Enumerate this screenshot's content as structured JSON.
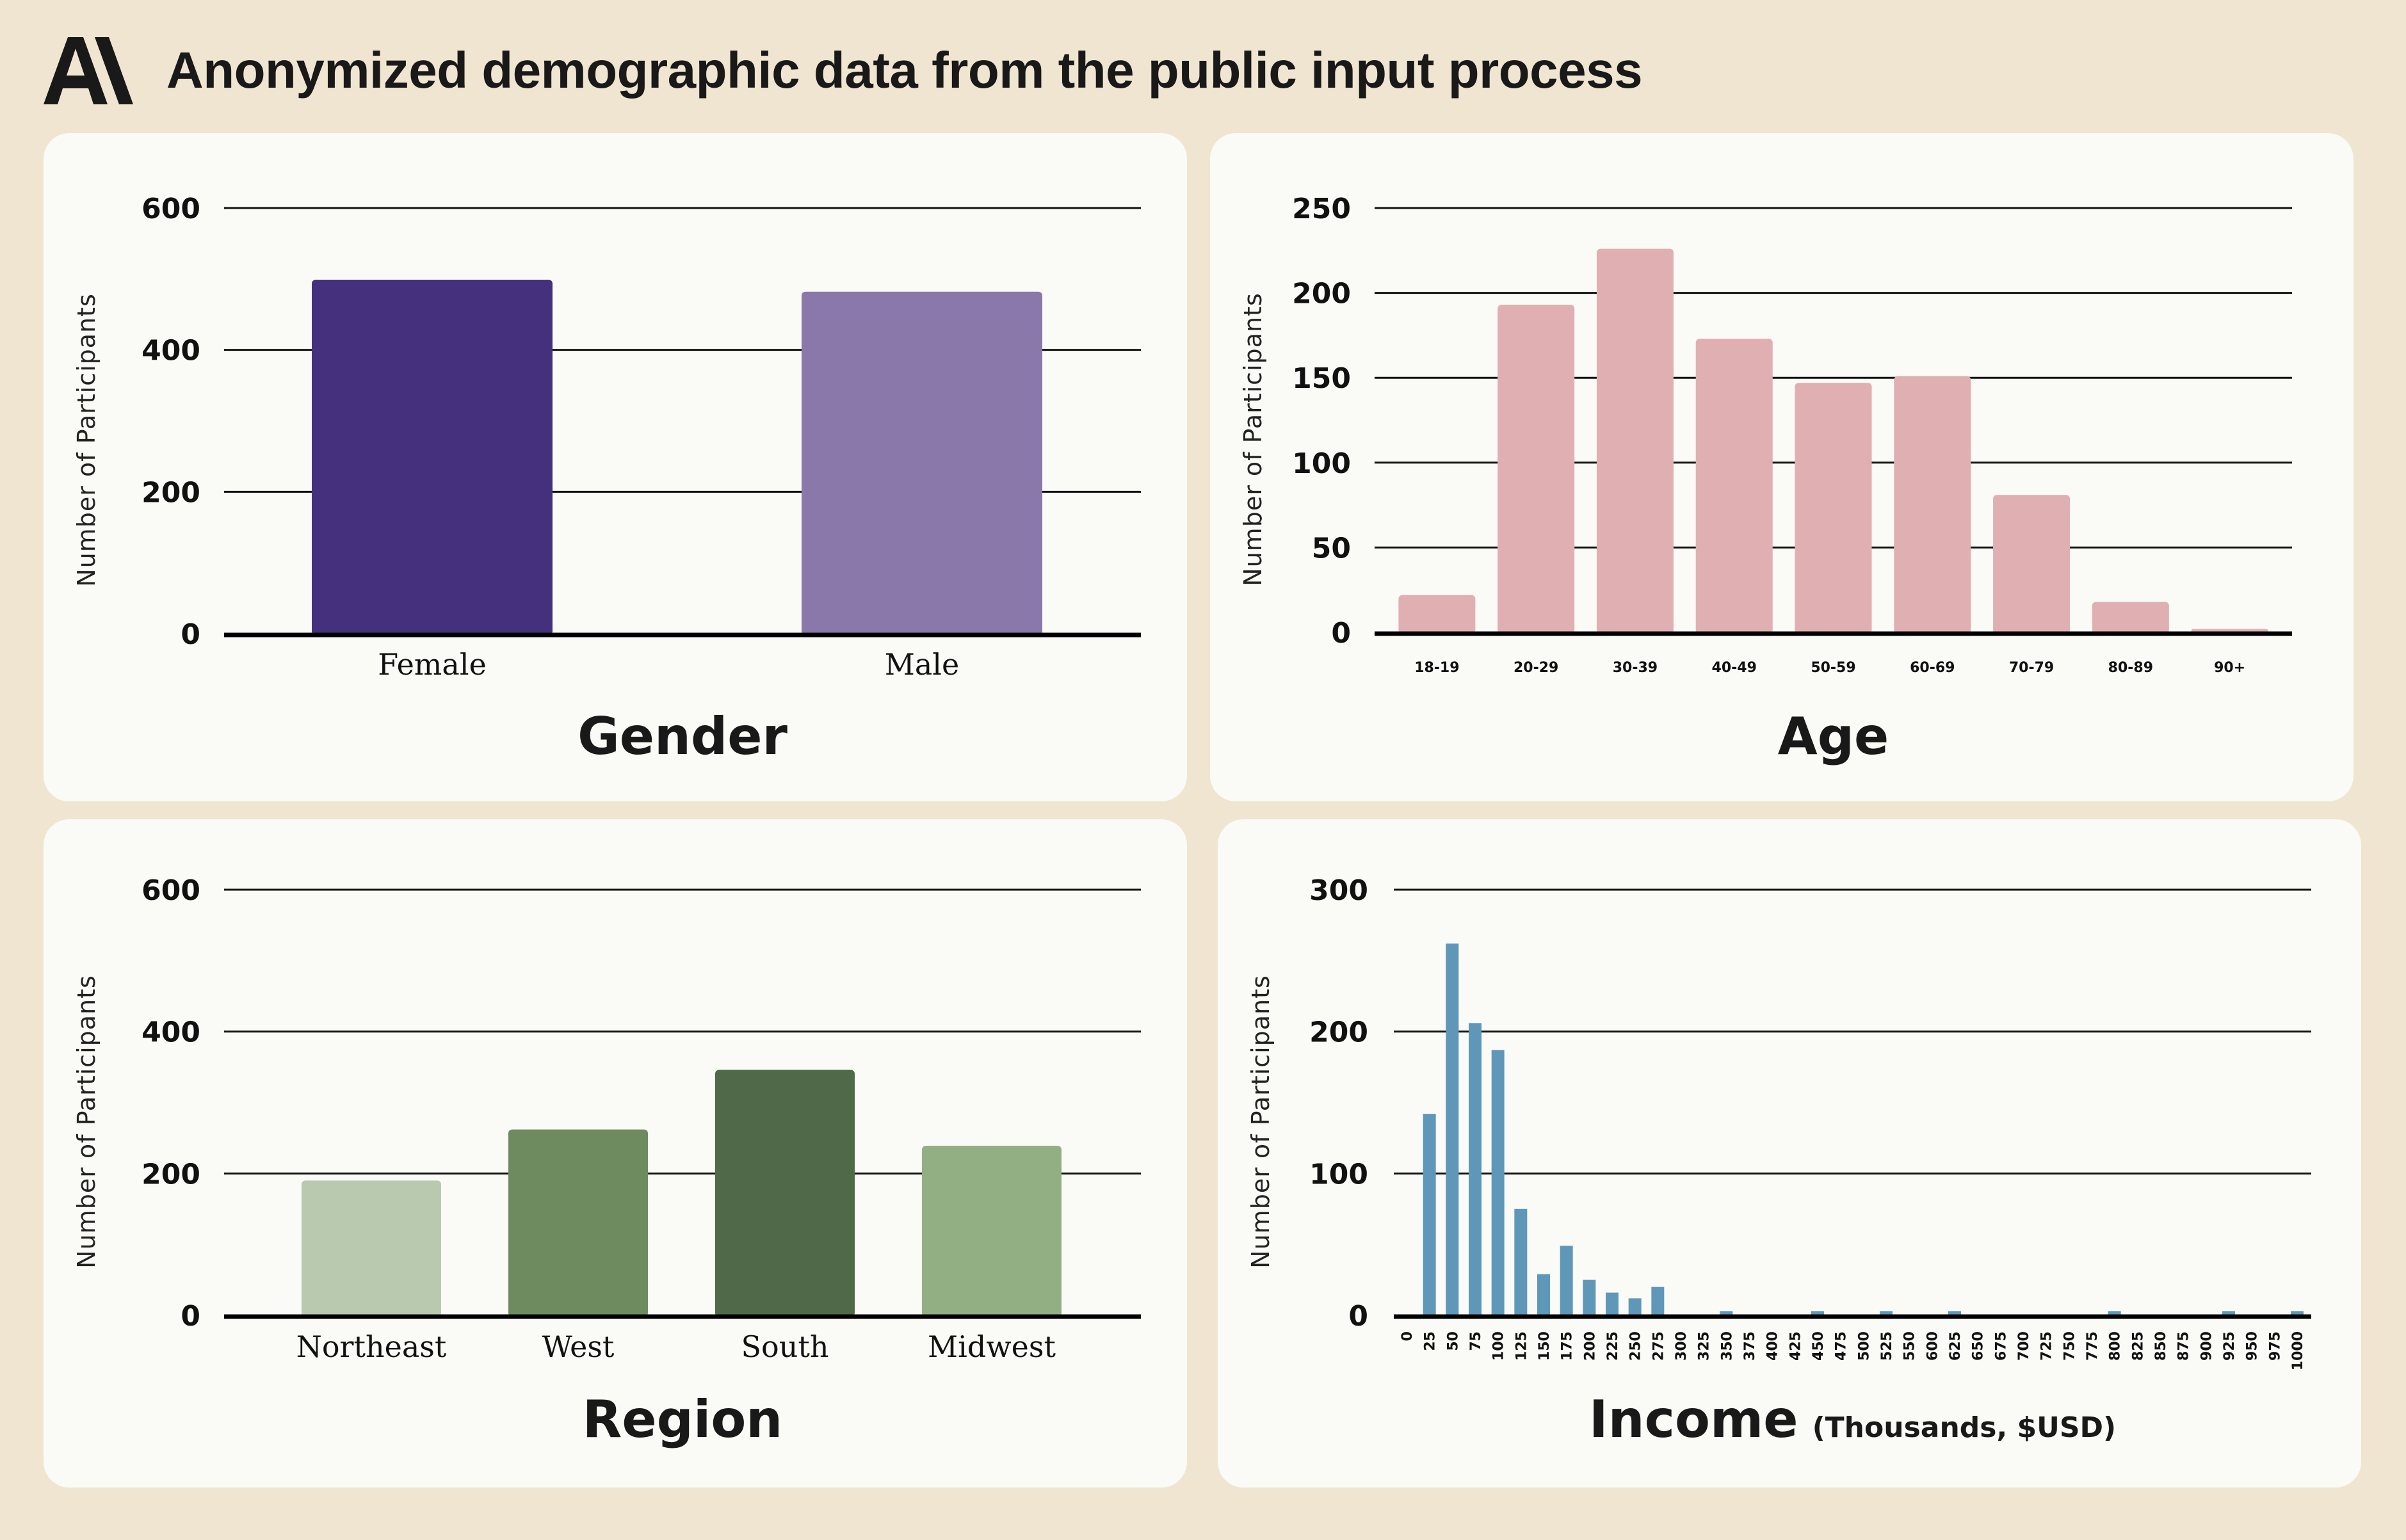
{
  "header": {
    "logo_icon": "anthropic-logo-icon",
    "title": "Anonymized demographic data from the public input process"
  },
  "colors": {
    "background": "#f0e5d0",
    "panel": "#fafaf6",
    "text": "#191919"
  },
  "chart_data": [
    {
      "id": "gender",
      "type": "bar",
      "title": "Gender",
      "subtitle": "",
      "xlabel": "Gender",
      "ylabel": "Number of Participants",
      "categories": [
        "Female",
        "Male"
      ],
      "values": [
        499,
        482
      ],
      "colors": [
        "#45307e",
        "#8a78ab"
      ],
      "yticks": [
        0,
        200,
        400,
        600
      ],
      "ylim": [
        0,
        600
      ],
      "grid": true,
      "legend": "none"
    },
    {
      "id": "age",
      "type": "bar",
      "title": "Age",
      "subtitle": "",
      "xlabel": "Age",
      "ylabel": "Number of Participants",
      "categories": [
        "18-19",
        "20-29",
        "30-39",
        "40-49",
        "50-59",
        "60-69",
        "70-79",
        "80-89",
        "90+"
      ],
      "values": [
        22,
        193,
        226,
        173,
        147,
        151,
        81,
        18,
        2
      ],
      "colors": [
        "#e0afb2"
      ],
      "yticks": [
        0,
        50,
        100,
        150,
        200,
        250
      ],
      "ylim": [
        0,
        250
      ],
      "grid": true,
      "legend": "none"
    },
    {
      "id": "region",
      "type": "bar",
      "title": "Region",
      "subtitle": "",
      "xlabel": "Region",
      "ylabel": "Number of Participants",
      "categories": [
        "Northeast",
        "West",
        "South",
        "Midwest"
      ],
      "values": [
        190,
        262,
        346,
        239
      ],
      "colors": [
        "#b9c9b0",
        "#6e8b5f",
        "#506948",
        "#91af83"
      ],
      "yticks": [
        0,
        200,
        400,
        600
      ],
      "ylim": [
        0,
        600
      ],
      "grid": true,
      "legend": "none"
    },
    {
      "id": "income",
      "type": "bar",
      "title": "Income",
      "subtitle": "(Thousands, $USD)",
      "xlabel": "Income (Thousands, $USD)",
      "ylabel": "Number of Participants",
      "categories": [
        "0",
        "25",
        "50",
        "75",
        "100",
        "125",
        "150",
        "175",
        "200",
        "225",
        "250",
        "275",
        "300",
        "325",
        "350",
        "375",
        "400",
        "425",
        "450",
        "475",
        "500",
        "525",
        "550",
        "600",
        "625",
        "650",
        "675",
        "700",
        "725",
        "750",
        "775",
        "800",
        "825",
        "850",
        "875",
        "900",
        "925",
        "950",
        "975",
        "1000"
      ],
      "values": [
        0,
        142,
        262,
        206,
        187,
        75,
        29,
        49,
        25,
        16,
        12,
        20,
        0,
        0,
        3,
        0,
        0,
        0,
        3,
        0,
        0,
        3,
        0,
        0,
        3,
        0,
        0,
        0,
        0,
        0,
        0,
        3,
        0,
        0,
        0,
        0,
        3,
        0,
        0,
        3
      ],
      "colors": [
        "#5f97b9"
      ],
      "yticks": [
        0,
        100,
        200,
        300
      ],
      "ylim": [
        0,
        300
      ],
      "grid": true,
      "legend": "none"
    }
  ]
}
